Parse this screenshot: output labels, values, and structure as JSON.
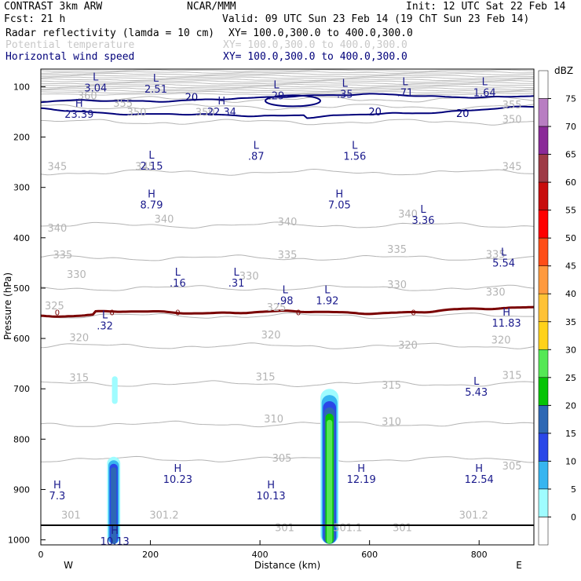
{
  "header": {
    "title": "CONTRAST  3km ARW",
    "org": "NCAR/MMM",
    "init": "Init: 12 UTC Sat 22 Feb 14",
    "fcst": "Fcst:   21 h",
    "valid": "Valid: 09 UTC Sun 23 Feb 14 (19 ChT Sun 23 Feb 14)",
    "fields": [
      {
        "name": "Radar reflectivity (lamda = 10 cm)",
        "xy": "XY= 100.0,300.0 to 400.0,300.0",
        "color": "#000000"
      },
      {
        "name": "Potential temperature",
        "xy": "XY= 100.0,300.0 to 400.0,300.0",
        "color": "#c8c8c8"
      },
      {
        "name": "Horizontal wind speed",
        "xy": "XY= 100.0,300.0 to 400.0,300.0",
        "color": "#00007a"
      }
    ]
  },
  "chart_data": {
    "type": "cross-section",
    "xlabel": "Distance (km)",
    "ylabel": "Pressure (hPa)",
    "xlim": [
      0,
      900
    ],
    "ylim": [
      1010,
      65
    ],
    "x_ticks": [
      0,
      200,
      400,
      600,
      800
    ],
    "y_ticks": [
      100,
      200,
      300,
      400,
      500,
      600,
      700,
      800,
      900,
      1000
    ],
    "west_label": "W",
    "east_label": "E",
    "colorbar": {
      "unit": "dBZ",
      "levels": [
        0,
        5,
        10,
        15,
        20,
        25,
        30,
        35,
        40,
        45,
        50,
        55,
        60,
        65,
        70,
        75
      ],
      "colors": [
        "#ffffff",
        "#9ffcff",
        "#37b5f0",
        "#2a47e8",
        "#2e68b4",
        "#06c406",
        "#55e855",
        "#ffd21a",
        "#ffc236",
        "#ff9a3f",
        "#ff4e17",
        "#ff0000",
        "#c80d0d",
        "#9e3a46",
        "#8a2a98",
        "#b87ec2",
        "#ffffff"
      ]
    },
    "theta_lines": [
      {
        "label": "345",
        "p": 270
      },
      {
        "label": "340",
        "p": 375
      },
      {
        "label": "335",
        "p": 440
      },
      {
        "label": "330",
        "p": 500
      },
      {
        "label": "325",
        "p": 555
      },
      {
        "label": "320",
        "p": 615
      },
      {
        "label": "315",
        "p": 690
      },
      {
        "label": "310",
        "p": 770
      },
      {
        "label": "305",
        "p": 840
      },
      {
        "label": "350",
        "p": 170
      },
      {
        "label": "355",
        "p": 140
      },
      {
        "label": "360",
        "p": 125
      }
    ],
    "theta_labels": [
      {
        "text": "345",
        "x": 30,
        "p": 265
      },
      {
        "text": "345",
        "x": 190,
        "p": 265
      },
      {
        "text": "345",
        "x": 860,
        "p": 265
      },
      {
        "text": "340",
        "x": 30,
        "p": 388
      },
      {
        "text": "340",
        "x": 225,
        "p": 370
      },
      {
        "text": "340",
        "x": 450,
        "p": 375
      },
      {
        "text": "340",
        "x": 670,
        "p": 360
      },
      {
        "text": "335",
        "x": 40,
        "p": 441
      },
      {
        "text": "335",
        "x": 450,
        "p": 441
      },
      {
        "text": "335",
        "x": 650,
        "p": 430
      },
      {
        "text": "335",
        "x": 830,
        "p": 440
      },
      {
        "text": "330",
        "x": 65,
        "p": 480
      },
      {
        "text": "330",
        "x": 380,
        "p": 483
      },
      {
        "text": "330",
        "x": 650,
        "p": 500
      },
      {
        "text": "330",
        "x": 830,
        "p": 515
      },
      {
        "text": "325",
        "x": 25,
        "p": 542
      },
      {
        "text": "325",
        "x": 430,
        "p": 545
      },
      {
        "text": "320",
        "x": 70,
        "p": 605
      },
      {
        "text": "320",
        "x": 420,
        "p": 600
      },
      {
        "text": "320",
        "x": 670,
        "p": 620
      },
      {
        "text": "320",
        "x": 840,
        "p": 610
      },
      {
        "text": "315",
        "x": 70,
        "p": 685
      },
      {
        "text": "315",
        "x": 410,
        "p": 683
      },
      {
        "text": "315",
        "x": 640,
        "p": 700
      },
      {
        "text": "315",
        "x": 860,
        "p": 680
      },
      {
        "text": "310",
        "x": 425,
        "p": 767
      },
      {
        "text": "310",
        "x": 640,
        "p": 772
      },
      {
        "text": "305",
        "x": 440,
        "p": 845
      },
      {
        "text": "305",
        "x": 860,
        "p": 860
      },
      {
        "text": "301",
        "x": 55,
        "p": 958
      },
      {
        "text": "301.2",
        "x": 225,
        "p": 958
      },
      {
        "text": "301",
        "x": 445,
        "p": 983
      },
      {
        "text": "301.1",
        "x": 560,
        "p": 983
      },
      {
        "text": "301",
        "x": 660,
        "p": 983
      },
      {
        "text": "301.2",
        "x": 790,
        "p": 958
      },
      {
        "text": "360",
        "x": 85,
        "p": 125
      },
      {
        "text": "355",
        "x": 150,
        "p": 140
      },
      {
        "text": "350",
        "x": 175,
        "p": 158
      },
      {
        "text": "350",
        "x": 300,
        "p": 158
      },
      {
        "text": "355",
        "x": 860,
        "p": 143
      },
      {
        "text": "350",
        "x": 860,
        "p": 172
      }
    ],
    "wind_contours": [
      {
        "label": "20",
        "p_left": 130,
        "p_right": 118
      }
    ],
    "wind_contour_labels": [
      {
        "text": "20",
        "x": 275,
        "p": 128
      },
      {
        "text": "20",
        "x": 610,
        "p": 157
      },
      {
        "text": "20",
        "x": 770,
        "p": 160
      }
    ],
    "zero_line": {
      "label": "0",
      "p": 548
    },
    "highs_lows": [
      {
        "type": "L",
        "value": "3.04",
        "x": 100,
        "p": 88
      },
      {
        "type": "L",
        "value": "2.51",
        "x": 210,
        "p": 90
      },
      {
        "type": "L",
        "value": ".29",
        "x": 430,
        "p": 103
      },
      {
        "type": "L",
        "value": ".35",
        "x": 555,
        "p": 100
      },
      {
        "type": "L",
        "value": ".71",
        "x": 665,
        "p": 97
      },
      {
        "type": "L",
        "value": "1.64",
        "x": 810,
        "p": 97
      },
      {
        "type": "H",
        "value": "23.39",
        "x": 70,
        "p": 140
      },
      {
        "type": "H",
        "value": "22.34",
        "x": 330,
        "p": 135
      },
      {
        "type": "L",
        "value": ".87",
        "x": 393,
        "p": 223
      },
      {
        "type": "L",
        "value": "1.56",
        "x": 573,
        "p": 223
      },
      {
        "type": "L",
        "value": "2.15",
        "x": 202,
        "p": 243
      },
      {
        "type": "H",
        "value": "8.79",
        "x": 202,
        "p": 320
      },
      {
        "type": "H",
        "value": "7.05",
        "x": 545,
        "p": 320
      },
      {
        "type": "L",
        "value": "3.36",
        "x": 698,
        "p": 350
      },
      {
        "type": "L",
        "value": "5.54",
        "x": 845,
        "p": 435
      },
      {
        "type": "L",
        "value": ".16",
        "x": 250,
        "p": 475
      },
      {
        "type": "L",
        "value": ".31",
        "x": 357,
        "p": 475
      },
      {
        "type": "L",
        "value": ".98",
        "x": 446,
        "p": 510
      },
      {
        "type": "L",
        "value": "1.92",
        "x": 523,
        "p": 510
      },
      {
        "type": "L",
        "value": ".32",
        "x": 117,
        "p": 560
      },
      {
        "type": "H",
        "value": "11.83",
        "x": 850,
        "p": 555
      },
      {
        "type": "L",
        "value": "5.43",
        "x": 795,
        "p": 692
      },
      {
        "type": "H",
        "value": "10.23",
        "x": 250,
        "p": 865
      },
      {
        "type": "H",
        "value": "12.19",
        "x": 585,
        "p": 865
      },
      {
        "type": "H",
        "value": "12.54",
        "x": 800,
        "p": 865
      },
      {
        "type": "H",
        "value": "7.3",
        "x": 30,
        "p": 898
      },
      {
        "type": "H",
        "value": "10.13",
        "x": 420,
        "p": 898
      },
      {
        "type": "H",
        "value": "10.13",
        "x": 135,
        "p": 988
      }
    ],
    "reflectivity_cells": [
      {
        "x_center": 133,
        "p_top": 835,
        "p_bottom": 1008,
        "max_dbz": 20
      },
      {
        "x_center": 527,
        "p_top": 700,
        "p_bottom": 1008,
        "max_dbz": 30
      },
      {
        "x_center": 135,
        "p_top": 675,
        "p_bottom": 730,
        "max_dbz": 5
      }
    ]
  }
}
